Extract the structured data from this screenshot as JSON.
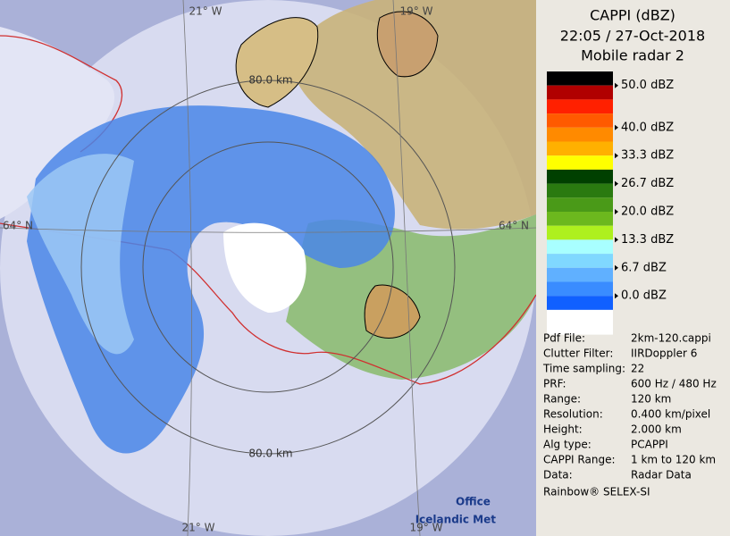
{
  "header": {
    "title": "CAPPI (dBZ)",
    "datetime": "22:05 / 27-Oct-2018",
    "radar": "Mobile radar 2"
  },
  "legend": {
    "colors": [
      "#000000",
      "#b00000",
      "#ff2000",
      "#ff5a00",
      "#ff8a00",
      "#ffb000",
      "#ffff00",
      "#004000",
      "#2a7a10",
      "#4a9a18",
      "#6cb81e",
      "#aef01e",
      "#a8ffff",
      "#80d8ff",
      "#60b0ff",
      "#3a8cff",
      "#1060ff",
      "#ffffff"
    ],
    "labels": [
      "50.0 dBZ",
      "40.0 dBZ",
      "33.3 dBZ",
      "26.7 dBZ",
      "20.0 dBZ",
      "13.3 dBZ",
      "6.7 dBZ",
      "0.0 dBZ"
    ]
  },
  "info": [
    [
      "Pdf File:",
      "2km-120.cappi"
    ],
    [
      "Clutter Filter:",
      "IIRDoppler 6"
    ],
    [
      "Time sampling:",
      "22"
    ],
    [
      "PRF:",
      "600 Hz / 480 Hz"
    ],
    [
      "Range:",
      "120 km"
    ],
    [
      "Resolution:",
      "0.400 km/pixel"
    ],
    [
      "Height:",
      "2.000 km"
    ],
    [
      "Alg type:",
      "PCAPPI"
    ],
    [
      "CAPPI Range:",
      "1 km to 120 km"
    ],
    [
      "Data:",
      "Radar Data"
    ]
  ],
  "footer": "Rainbow® SELEX-SI",
  "map": {
    "grid_labels": [
      "21° W",
      "19° W",
      "64° N",
      "64° N",
      "21° W",
      "19° W"
    ],
    "ring_labels": [
      "80.0 km",
      "80.0 km"
    ]
  },
  "logo": [
    "Icelandic Met",
    "Office"
  ]
}
